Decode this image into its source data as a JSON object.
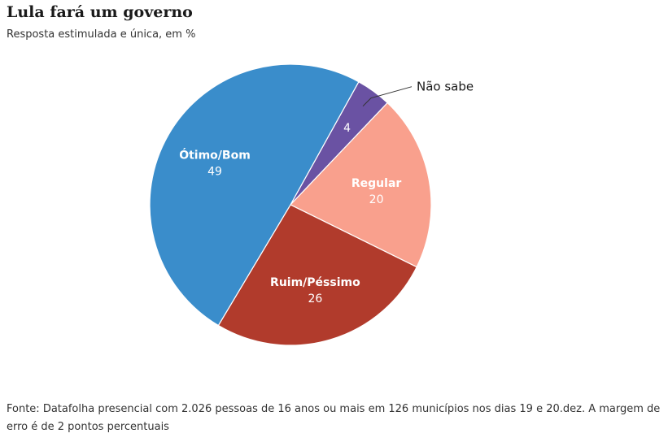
{
  "header": {
    "title": "Lula fará um governo",
    "subtitle": "Resposta estimulada e única, em %"
  },
  "footer": {
    "source": "Fonte: Datafolha presencial com 2.026 pessoas de 16 anos ou mais em 126 municípios nos dias 19 e 20.dez. A margem de erro é de 2 pontos percentuais"
  },
  "chart_data": {
    "type": "pie",
    "title": "Lula fará um governo",
    "subtitle": "Resposta estimulada e única, em %",
    "unit": "%",
    "slices": [
      {
        "label": "Não sabe",
        "value": 4,
        "color": "#6a52a3"
      },
      {
        "label": "Regular",
        "value": 20,
        "color": "#f9a08d"
      },
      {
        "label": "Ruim/Péssimo",
        "value": 26,
        "color": "#b13b2c"
      },
      {
        "label": "Ótimo/Bom",
        "value": 49,
        "color": "#3a8dcb"
      }
    ]
  }
}
